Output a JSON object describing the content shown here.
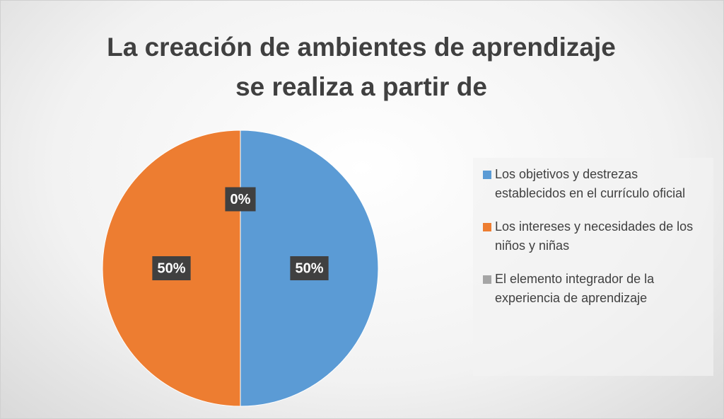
{
  "chart_data": {
    "type": "pie",
    "title": "La creación de ambientes de aprendizaje se realiza a partir de",
    "categories": [
      "Los objetivos y destrezas establecidos en el currículo oficial",
      "Los intereses y necesidades de los niños y niñas",
      "El elemento integrador de la experiencia de aprendizaje"
    ],
    "values": [
      50,
      50,
      0
    ],
    "value_labels": [
      "50%",
      "50%",
      "0%"
    ],
    "colors": [
      "#5b9bd5",
      "#ed7d31",
      "#a5a5a5"
    ],
    "legend": "right"
  }
}
